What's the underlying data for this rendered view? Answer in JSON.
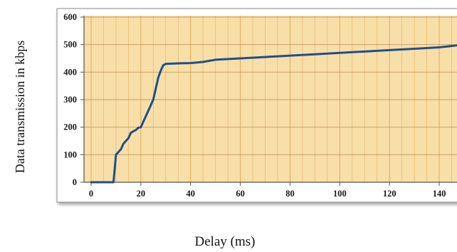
{
  "chart_data": {
    "type": "line",
    "title": "",
    "xlabel": "Delay (ms)",
    "ylabel": "Data transmission in kbps",
    "xlim": [
      0,
      150
    ],
    "ylim": [
      0,
      600
    ],
    "x_ticks": [
      0,
      20,
      40,
      60,
      80,
      100,
      120,
      140
    ],
    "y_ticks": [
      0,
      100,
      200,
      300,
      400,
      500,
      600
    ],
    "grid": true,
    "legend": "none",
    "colors": {
      "line": "#1f4e8c",
      "plot_background": "#f8dfa8",
      "grid": "#e0a95a",
      "frame": "#555555"
    },
    "series": [
      {
        "x": [
          0,
          9,
          10,
          11,
          12,
          13,
          14,
          15,
          16,
          17,
          18,
          19,
          20,
          21,
          22,
          23,
          24,
          25,
          26,
          27,
          28,
          29,
          30,
          35,
          40,
          45,
          50,
          60,
          70,
          80,
          90,
          100,
          110,
          120,
          130,
          140,
          150
        ],
        "y": [
          0,
          0,
          100,
          110,
          120,
          140,
          150,
          160,
          180,
          185,
          190,
          198,
          200,
          220,
          240,
          260,
          280,
          300,
          340,
          380,
          405,
          425,
          430,
          432,
          433,
          437,
          445,
          450,
          455,
          460,
          465,
          470,
          475,
          480,
          485,
          490,
          500
        ]
      }
    ]
  }
}
